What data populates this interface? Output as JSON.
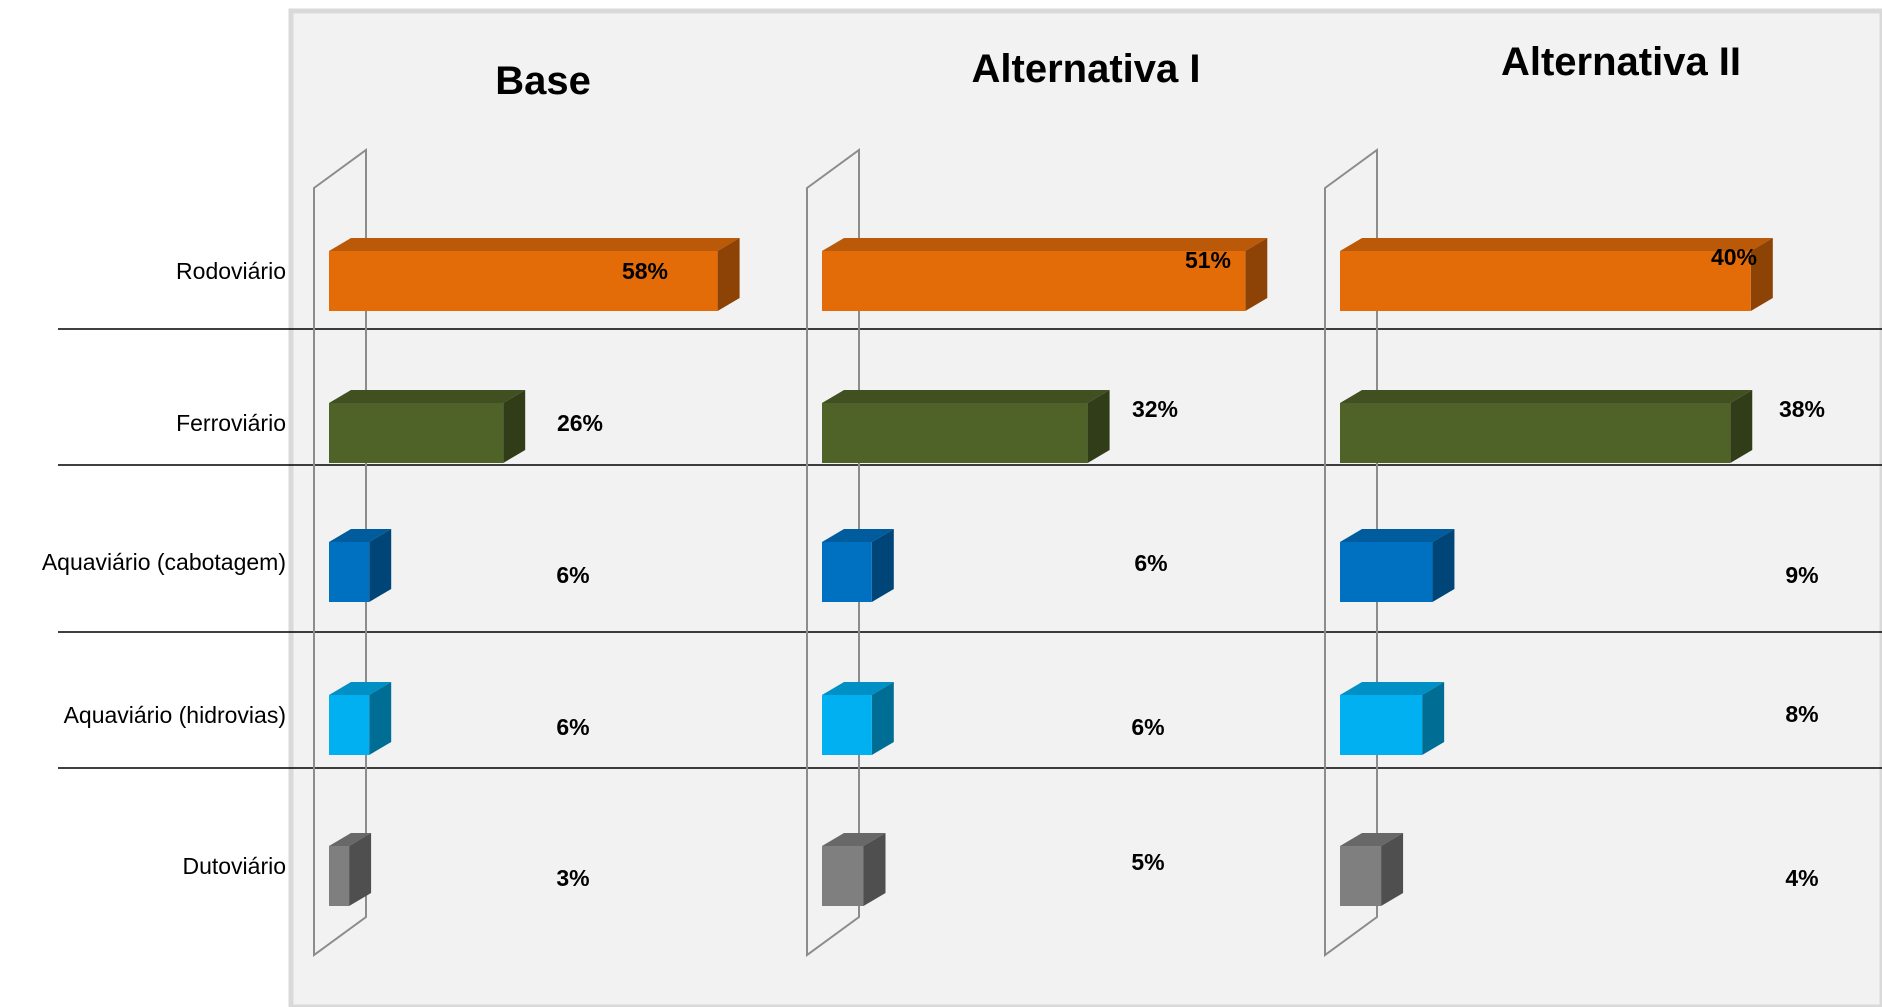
{
  "chart_data": {
    "type": "bar",
    "orientation": "horizontal",
    "style": "3d",
    "categories": [
      "Rodoviário",
      "Ferroviário",
      "Aquaviário (cabotagem)",
      "Aquaviário (hidrovias)",
      "Dutoviário"
    ],
    "category_colors": [
      "#E36C09",
      "#4F6228",
      "#0070C0",
      "#00B0F0",
      "#7F7F7F"
    ],
    "series": [
      {
        "name": "Base",
        "values": [
          58,
          26,
          6,
          6,
          3
        ],
        "value_labels": [
          "58%",
          "26%",
          "6%",
          "6%",
          "3%"
        ]
      },
      {
        "name": "Alternativa I",
        "values": [
          51,
          32,
          6,
          6,
          5
        ],
        "value_labels": [
          "51%",
          "32%",
          "6%",
          "6%",
          "5%"
        ]
      },
      {
        "name": "Alternativa II",
        "values": [
          40,
          38,
          9,
          8,
          4
        ],
        "value_labels": [
          "40%",
          "38%",
          "9%",
          "8%",
          "4%"
        ]
      }
    ],
    "unit": "%",
    "grid": false,
    "legend": "none",
    "background": "#F2F2F2"
  }
}
